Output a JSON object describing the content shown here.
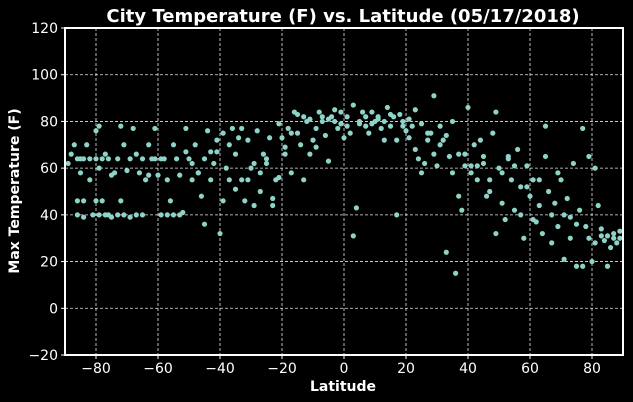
{
  "chart_data": {
    "type": "scatter",
    "title": "City Temperature (F) vs. Latitude (05/17/2018)",
    "xlabel": "Latitude",
    "ylabel": "Max Temperature (F)",
    "xlim": [
      -90,
      90
    ],
    "ylim": [
      -20,
      120
    ],
    "xticks": [
      -80,
      -60,
      -40,
      -20,
      0,
      20,
      40,
      60,
      80
    ],
    "xtick_labels": [
      "−80",
      "−60",
      "−40",
      "−20",
      "0",
      "20",
      "40",
      "60",
      "80"
    ],
    "yticks": [
      -20,
      0,
      20,
      40,
      60,
      80,
      100,
      120
    ],
    "ytick_labels": [
      "−20",
      "0",
      "20",
      "40",
      "60",
      "80",
      "100",
      "120"
    ],
    "grid": true,
    "background": "#000000",
    "point_color": "#8dd3c7",
    "points": [
      [
        -89,
        62
      ],
      [
        -88,
        66
      ],
      [
        -87,
        70
      ],
      [
        -86,
        46
      ],
      [
        -86,
        40
      ],
      [
        -85,
        64
      ],
      [
        -85,
        58
      ],
      [
        -84,
        46
      ],
      [
        -84,
        39
      ],
      [
        -83,
        70
      ],
      [
        -82,
        64
      ],
      [
        -82,
        55
      ],
      [
        -81,
        40
      ],
      [
        -80,
        46
      ],
      [
        -80,
        76
      ],
      [
        -79,
        78
      ],
      [
        -79,
        60
      ],
      [
        -78,
        64
      ],
      [
        -78,
        46
      ],
      [
        -77,
        66
      ],
      [
        -76,
        64
      ],
      [
        -76,
        40
      ],
      [
        -75,
        39
      ],
      [
        -74,
        58
      ],
      [
        -73,
        64
      ],
      [
        -72,
        78
      ],
      [
        -72,
        46
      ],
      [
        -71,
        70
      ],
      [
        -70,
        59
      ],
      [
        -69,
        39
      ],
      [
        -68,
        77
      ],
      [
        -67,
        66
      ],
      [
        -66,
        58
      ],
      [
        -65,
        64
      ],
      [
        -64,
        55
      ],
      [
        -63,
        70
      ],
      [
        -62,
        64
      ],
      [
        -61,
        77
      ],
      [
        -60,
        57
      ],
      [
        -59,
        40
      ],
      [
        -58,
        64
      ],
      [
        -57,
        55
      ],
      [
        -56,
        46
      ],
      [
        -55,
        70
      ],
      [
        -54,
        64
      ],
      [
        -53,
        57
      ],
      [
        -52,
        41
      ],
      [
        -51,
        77
      ],
      [
        -50,
        64
      ],
      [
        -49,
        55
      ],
      [
        -48,
        70
      ],
      [
        -47,
        58
      ],
      [
        -46,
        48
      ],
      [
        -45,
        64
      ],
      [
        -44,
        76
      ],
      [
        -43,
        55
      ],
      [
        -42,
        62
      ],
      [
        -41,
        72
      ],
      [
        -40,
        32
      ],
      [
        -39,
        46
      ],
      [
        -38,
        60
      ],
      [
        -37,
        70
      ],
      [
        -36,
        77
      ],
      [
        -35,
        66
      ],
      [
        -34,
        73
      ],
      [
        -33,
        55
      ],
      [
        -32,
        46
      ],
      [
        -31,
        72
      ],
      [
        -30,
        60
      ],
      [
        -29,
        62
      ],
      [
        -28,
        76
      ],
      [
        -27,
        50
      ],
      [
        -26,
        66
      ],
      [
        -25,
        62
      ],
      [
        -24,
        73
      ],
      [
        -23,
        47
      ],
      [
        -22,
        55
      ],
      [
        -21,
        79
      ],
      [
        -20,
        73
      ],
      [
        -19,
        69
      ],
      [
        -18,
        77
      ],
      [
        -17,
        58
      ],
      [
        -16,
        84
      ],
      [
        -15,
        75
      ],
      [
        -14,
        70
      ],
      [
        -13,
        55
      ],
      [
        -12,
        80
      ],
      [
        -11,
        66
      ],
      [
        -10,
        72
      ],
      [
        -9,
        77
      ],
      [
        -8,
        84
      ],
      [
        -7,
        80
      ],
      [
        -6,
        74
      ],
      [
        -5,
        63
      ],
      [
        -4,
        82
      ],
      [
        -3,
        85
      ],
      [
        -2,
        77
      ],
      [
        -1,
        79
      ],
      [
        0,
        73
      ],
      [
        1,
        82
      ],
      [
        2,
        75
      ],
      [
        3,
        31
      ],
      [
        4,
        43
      ],
      [
        5,
        80
      ],
      [
        6,
        84
      ],
      [
        7,
        78
      ],
      [
        8,
        75
      ],
      [
        9,
        84
      ],
      [
        10,
        80
      ],
      [
        11,
        82
      ],
      [
        12,
        77
      ],
      [
        13,
        72
      ],
      [
        14,
        86
      ],
      [
        15,
        78
      ],
      [
        16,
        82
      ],
      [
        17,
        40
      ],
      [
        18,
        83
      ],
      [
        19,
        80
      ],
      [
        20,
        76
      ],
      [
        21,
        73
      ],
      [
        22,
        78
      ],
      [
        23,
        68
      ],
      [
        24,
        64
      ],
      [
        25,
        58
      ],
      [
        26,
        62
      ],
      [
        27,
        72
      ],
      [
        28,
        75
      ],
      [
        29,
        66
      ],
      [
        30,
        61
      ],
      [
        31,
        78
      ],
      [
        32,
        72
      ],
      [
        33,
        24
      ],
      [
        34,
        65
      ],
      [
        35,
        80
      ],
      [
        36,
        15
      ],
      [
        37,
        48
      ],
      [
        38,
        42
      ],
      [
        39,
        66
      ],
      [
        40,
        86
      ],
      [
        41,
        58
      ],
      [
        42,
        70
      ],
      [
        43,
        55
      ],
      [
        44,
        72
      ],
      [
        45,
        62
      ],
      [
        46,
        48
      ],
      [
        47,
        55
      ],
      [
        48,
        75
      ],
      [
        49,
        32
      ],
      [
        50,
        60
      ],
      [
        51,
        45
      ],
      [
        52,
        38
      ],
      [
        53,
        65
      ],
      [
        54,
        55
      ],
      [
        55,
        42
      ],
      [
        56,
        68
      ],
      [
        57,
        52
      ],
      [
        58,
        30
      ],
      [
        59,
        61
      ],
      [
        60,
        48
      ],
      [
        61,
        55
      ],
      [
        62,
        37
      ],
      [
        63,
        44
      ],
      [
        64,
        32
      ],
      [
        65,
        78
      ],
      [
        66,
        50
      ],
      [
        67,
        28
      ],
      [
        68,
        45
      ],
      [
        69,
        35
      ],
      [
        70,
        55
      ],
      [
        71,
        21
      ],
      [
        72,
        47
      ],
      [
        73,
        30
      ],
      [
        74,
        62
      ],
      [
        75,
        18
      ],
      [
        76,
        42
      ],
      [
        77,
        77
      ],
      [
        78,
        35
      ],
      [
        79,
        65
      ],
      [
        80,
        20
      ],
      [
        81,
        28
      ],
      [
        82,
        44
      ],
      [
        83,
        31
      ],
      [
        84,
        29
      ],
      [
        85,
        18
      ],
      [
        86,
        26
      ],
      [
        87,
        32
      ],
      [
        88,
        28
      ],
      [
        89,
        30
      ],
      [
        -86,
        64
      ],
      [
        -84,
        64
      ],
      [
        -80,
        64
      ],
      [
        -79,
        40
      ],
      [
        -77,
        40
      ],
      [
        -75,
        57
      ],
      [
        -73,
        40
      ],
      [
        -71,
        40
      ],
      [
        -69,
        64
      ],
      [
        -67,
        40
      ],
      [
        -65,
        40
      ],
      [
        -63,
        57
      ],
      [
        -61,
        64
      ],
      [
        -59,
        64
      ],
      [
        -57,
        40
      ],
      [
        -55,
        40
      ],
      [
        -53,
        40
      ],
      [
        -51,
        67
      ],
      [
        -49,
        62
      ],
      [
        -47,
        58
      ],
      [
        -45,
        36
      ],
      [
        -43,
        67
      ],
      [
        -41,
        67
      ],
      [
        -39,
        75
      ],
      [
        -37,
        55
      ],
      [
        -35,
        51
      ],
      [
        -33,
        77
      ],
      [
        -31,
        55
      ],
      [
        -29,
        44
      ],
      [
        -27,
        58
      ],
      [
        -25,
        64
      ],
      [
        -23,
        44
      ],
      [
        -21,
        56
      ],
      [
        -19,
        66
      ],
      [
        -17,
        75
      ],
      [
        -15,
        83
      ],
      [
        -13,
        82
      ],
      [
        -11,
        81
      ],
      [
        -9,
        69
      ],
      [
        -7,
        82
      ],
      [
        -5,
        81
      ],
      [
        -3,
        80
      ],
      [
        -1,
        84
      ],
      [
        1,
        78
      ],
      [
        3,
        87
      ],
      [
        5,
        79
      ],
      [
        7,
        82
      ],
      [
        9,
        79
      ],
      [
        11,
        81
      ],
      [
        13,
        80
      ],
      [
        15,
        83
      ],
      [
        17,
        72
      ],
      [
        19,
        78
      ],
      [
        21,
        81
      ],
      [
        23,
        85
      ],
      [
        25,
        79
      ],
      [
        27,
        75
      ],
      [
        29,
        91
      ],
      [
        31,
        70
      ],
      [
        33,
        74
      ],
      [
        35,
        58
      ],
      [
        37,
        66
      ],
      [
        39,
        61
      ],
      [
        41,
        61
      ],
      [
        43,
        61
      ],
      [
        45,
        65
      ],
      [
        47,
        50
      ],
      [
        49,
        84
      ],
      [
        51,
        58
      ],
      [
        53,
        64
      ],
      [
        55,
        61
      ],
      [
        57,
        40
      ],
      [
        59,
        52
      ],
      [
        61,
        38
      ],
      [
        63,
        55
      ],
      [
        65,
        65
      ],
      [
        67,
        40
      ],
      [
        69,
        58
      ],
      [
        71,
        40
      ],
      [
        73,
        39
      ],
      [
        75,
        36
      ],
      [
        77,
        18
      ],
      [
        79,
        30
      ],
      [
        81,
        60
      ],
      [
        83,
        34
      ],
      [
        85,
        31
      ],
      [
        87,
        30
      ],
      [
        89,
        33
      ]
    ]
  }
}
